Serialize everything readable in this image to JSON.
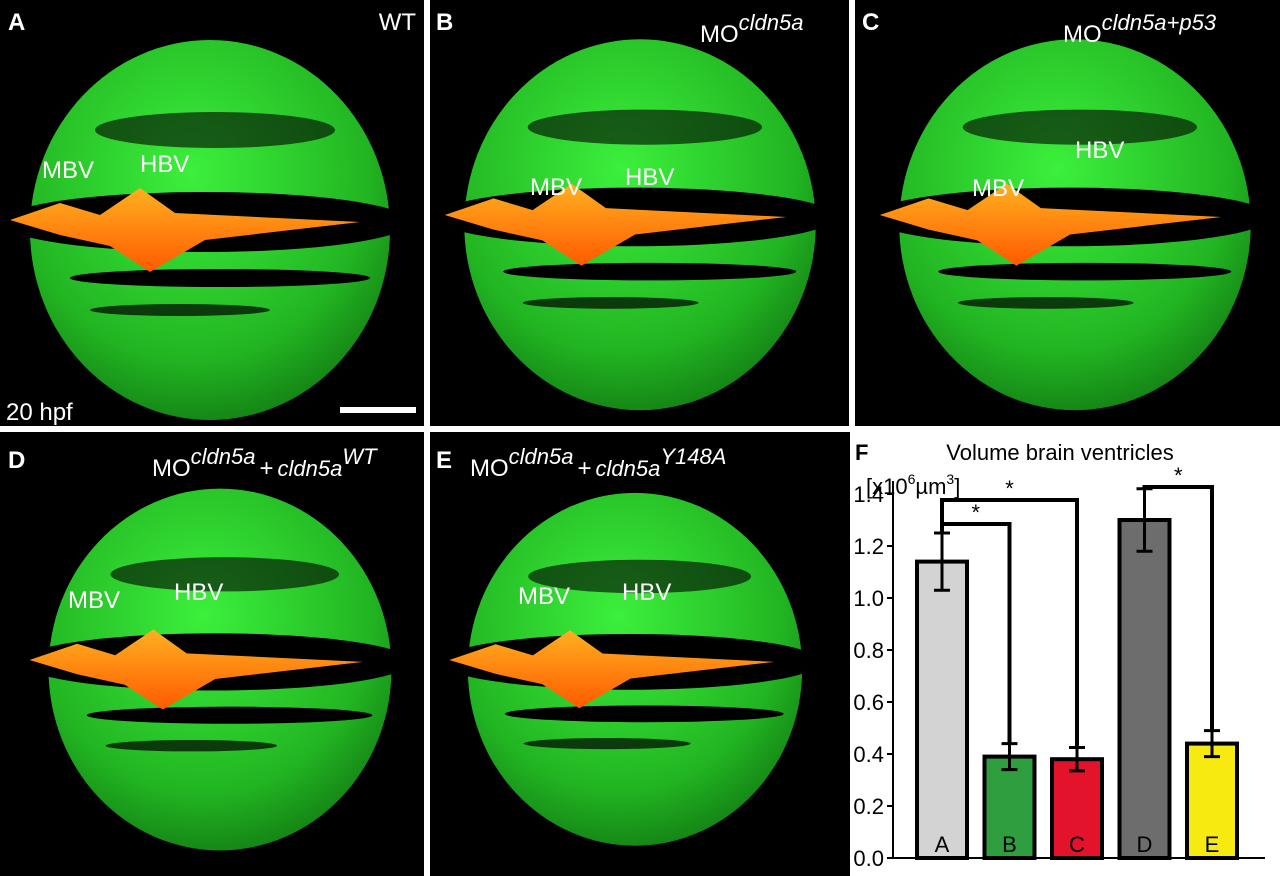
{
  "panels": [
    {
      "letter": "A",
      "condition": "WT",
      "mbv": "MBV",
      "hbv": "HBV",
      "stage": "20 hpf"
    },
    {
      "letter": "B",
      "mo": "MO",
      "morph": "cldn5a",
      "mbv": "MBV",
      "hbv": "HBV"
    },
    {
      "letter": "C",
      "mo": "MO",
      "morph": "cldn5a+p53",
      "mbv": "MBV",
      "hbv": "HBV"
    },
    {
      "letter": "D",
      "mo": "MO",
      "morph": "cldn5a",
      "plus": "+",
      "rescue": "cldn5a",
      "variant": "WT",
      "mbv": "MBV",
      "hbv": "HBV"
    },
    {
      "letter": "E",
      "mo": "MO",
      "morph": "cldn5a",
      "plus": "+",
      "rescue": "cldn5a",
      "variant": "Y148A",
      "mbv": "MBV",
      "hbv": "HBV"
    }
  ],
  "chart_data": {
    "type": "bar",
    "panel_letter": "F",
    "title": "Volume brain ventricles",
    "unit": {
      "open": "[x10",
      "exp1": "6",
      "unit": "µm",
      "exp2": "3",
      "close": "]"
    },
    "categories": [
      "A",
      "B",
      "C",
      "D",
      "E"
    ],
    "values": [
      1.14,
      0.39,
      0.38,
      1.3,
      0.44
    ],
    "errors": [
      0.11,
      0.05,
      0.045,
      0.12,
      0.05
    ],
    "colors": [
      "#d3d3d3",
      "#2f9e3f",
      "#e3132c",
      "#6d6d6d",
      "#f6ea10"
    ],
    "significance": [
      "*",
      "*",
      "*"
    ],
    "ylim": [
      0,
      1.45
    ],
    "yticks": [
      {
        "value": 0,
        "label": "0.0"
      },
      0.2,
      0.4,
      0.6,
      0.8,
      {
        "value": 1,
        "label": "1.0"
      },
      1.2,
      1.4
    ]
  }
}
